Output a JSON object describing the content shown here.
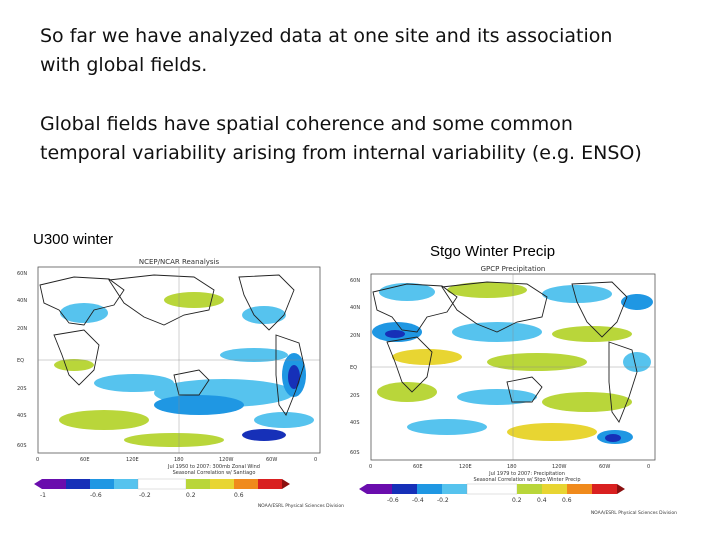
{
  "slide": {
    "paragraph1": "So far we have analyzed data at one site and its association",
    "paragraph1b": "with global fields.",
    "paragraph2": "Global fields have spatial coherence and some common",
    "paragraph2b": "temporal variability arising from internal variability (e.g. ENSO)"
  },
  "panels": {
    "left": {
      "label": "U300 winter",
      "plot_title": "NCEP/NCAR Reanalysis",
      "caption_line1": "Jul 1950 to 2007: 300mb Zonal Wind",
      "caption_line2": "Seasonal Correlation w/ Santiago",
      "credit": "NOAA/ESRL Physical Sciences Division",
      "lat_labels": [
        "60N",
        "40N",
        "20N",
        "EQ",
        "20S",
        "40S",
        "60S"
      ],
      "lon_labels": [
        "0",
        "60E",
        "120E",
        "180",
        "120W",
        "60W",
        "0"
      ],
      "colorbar_ticks": [
        "-1",
        "-0.6",
        "-0.2",
        "0.2",
        "0.6"
      ]
    },
    "right": {
      "label": "Stgo Winter Precip",
      "plot_title": "GPCP Precipitation",
      "caption_line1": "Jul 1979 to 2007: Precipitation",
      "caption_line2": "Seasonal Correlation w/ Stgo Winter Precip",
      "credit": "NOAA/ESRL Physical Sciences Division",
      "lat_labels": [
        "60N",
        "40N",
        "20N",
        "EQ",
        "20S",
        "40S",
        "60S"
      ],
      "lon_labels": [
        "0",
        "60E",
        "120E",
        "180",
        "120W",
        "60W",
        "0"
      ],
      "colorbar_ticks": [
        "-0.6",
        "-0.4",
        "-0.2",
        "0.2",
        "0.4",
        "0.6"
      ]
    }
  },
  "colors": {
    "land_outline": "#222222",
    "blue": "#1f97e3",
    "light_blue": "#56c3ee",
    "dark_blue": "#1630b8",
    "green": "#b9d63a",
    "yellow": "#e8d532"
  }
}
